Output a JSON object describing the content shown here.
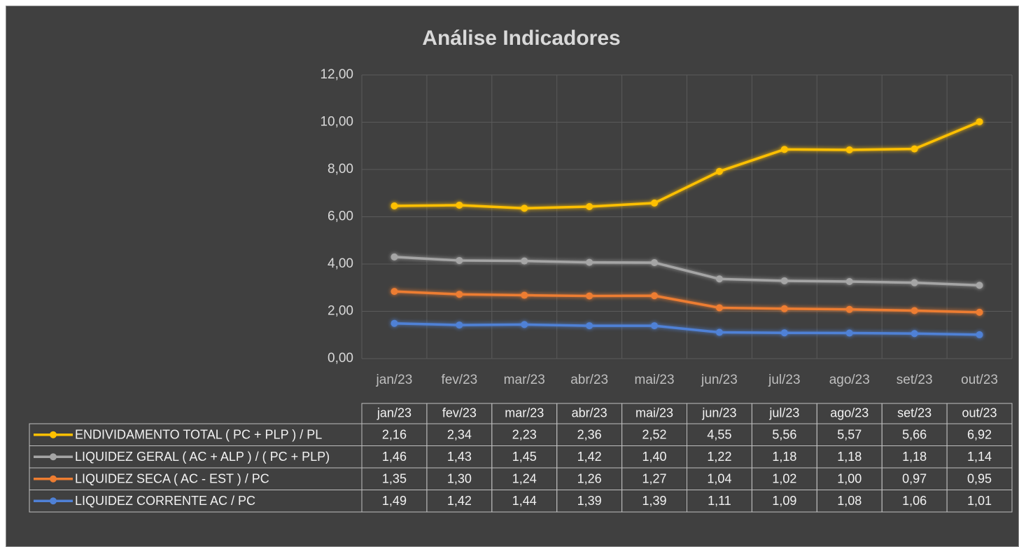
{
  "chart_data": {
    "type": "line",
    "stacked": true,
    "title": "Análise Indicadores",
    "categories": [
      "jan/23",
      "fev/23",
      "mar/23",
      "abr/23",
      "mai/23",
      "jun/23",
      "jul/23",
      "ago/23",
      "set/23",
      "out/23"
    ],
    "ylim": [
      0,
      12
    ],
    "yticks": [
      {
        "value": 0,
        "label": "0,00"
      },
      {
        "value": 2,
        "label": "2,00"
      },
      {
        "value": 4,
        "label": "4,00"
      },
      {
        "value": 6,
        "label": "6,00"
      },
      {
        "value": 8,
        "label": "8,00"
      },
      {
        "value": 10,
        "label": "10,00"
      },
      {
        "value": 12,
        "label": "12,00"
      }
    ],
    "grid": true,
    "data_table": true,
    "series": [
      {
        "name": "ENDIVIDAMENTO TOTAL ( PC + PLP )  / PL",
        "color": "#ffc000",
        "values": [
          2.16,
          2.34,
          2.23,
          2.36,
          2.52,
          4.55,
          5.56,
          5.57,
          5.66,
          6.92
        ],
        "value_labels": [
          "2,16",
          "2,34",
          "2,23",
          "2,36",
          "2,52",
          "4,55",
          "5,56",
          "5,57",
          "5,66",
          "6,92"
        ]
      },
      {
        "name": "LIQUIDEZ GERAL ( AC + ALP ) / ( PC + PLP)",
        "color": "#a5a5a5",
        "values": [
          1.46,
          1.43,
          1.45,
          1.42,
          1.4,
          1.22,
          1.18,
          1.18,
          1.18,
          1.14
        ],
        "value_labels": [
          "1,46",
          "1,43",
          "1,45",
          "1,42",
          "1,40",
          "1,22",
          "1,18",
          "1,18",
          "1,18",
          "1,14"
        ]
      },
      {
        "name": "LIQUIDEZ SECA  ( AC - EST )  / PC",
        "color": "#ed7d31",
        "values": [
          1.35,
          1.3,
          1.24,
          1.26,
          1.27,
          1.04,
          1.02,
          1.0,
          0.97,
          0.95
        ],
        "value_labels": [
          "1,35",
          "1,30",
          "1,24",
          "1,26",
          "1,27",
          "1,04",
          "1,02",
          "1,00",
          "0,97",
          "0,95"
        ]
      },
      {
        "name": "LIQUIDEZ CORRENTE  AC / PC",
        "color": "#4f81d6",
        "values": [
          1.49,
          1.42,
          1.44,
          1.39,
          1.39,
          1.11,
          1.09,
          1.08,
          1.06,
          1.01
        ],
        "value_labels": [
          "1,49",
          "1,42",
          "1,44",
          "1,39",
          "1,39",
          "1,11",
          "1,09",
          "1,08",
          "1,06",
          "1,01"
        ]
      }
    ]
  }
}
